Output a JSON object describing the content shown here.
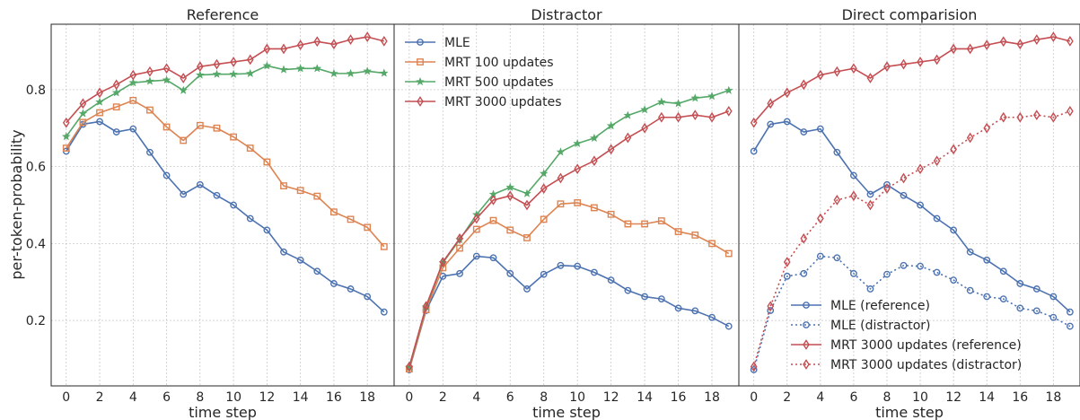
{
  "figure": {
    "ylabel": "per-token-probability",
    "ylim": [
      0.03,
      0.97
    ],
    "yticks": [
      0.2,
      0.4,
      0.6,
      0.8
    ],
    "xlim": [
      -0.9,
      19.6
    ],
    "xticks": [
      0,
      2,
      4,
      6,
      8,
      10,
      12,
      14,
      16,
      18
    ],
    "xlabel": "time step"
  },
  "colors": {
    "mle": "#4c72b0",
    "mrt100": "#dd8452",
    "mrt500": "#55a868",
    "mrt3000": "#c44e52"
  },
  "chart_data": [
    {
      "type": "line",
      "title": "Reference",
      "xlabel": "time step",
      "ylabel": "per-token-probability",
      "grid": true,
      "x": [
        0,
        1,
        2,
        3,
        4,
        5,
        6,
        7,
        8,
        9,
        10,
        11,
        12,
        13,
        14,
        15,
        16,
        17,
        18,
        19
      ],
      "series": [
        {
          "key": "mle",
          "color": "#4c72b0",
          "marker": "circle",
          "dash": "solid",
          "values": [
            0.64,
            0.71,
            0.717,
            0.69,
            0.698,
            0.637,
            0.577,
            0.528,
            0.553,
            0.525,
            0.5,
            0.465,
            0.435,
            0.378,
            0.357,
            0.328,
            0.296,
            0.282,
            0.262,
            0.222
          ]
        },
        {
          "key": "mrt100",
          "color": "#dd8452",
          "marker": "square",
          "dash": "solid",
          "values": [
            0.648,
            0.715,
            0.74,
            0.755,
            0.772,
            0.747,
            0.703,
            0.668,
            0.707,
            0.7,
            0.677,
            0.648,
            0.612,
            0.55,
            0.538,
            0.523,
            0.482,
            0.463,
            0.442,
            0.392
          ]
        },
        {
          "key": "mrt500",
          "color": "#55a868",
          "marker": "star",
          "dash": "solid",
          "values": [
            0.678,
            0.738,
            0.768,
            0.792,
            0.818,
            0.822,
            0.825,
            0.798,
            0.838,
            0.84,
            0.84,
            0.842,
            0.862,
            0.852,
            0.855,
            0.855,
            0.842,
            0.842,
            0.848,
            0.843
          ]
        },
        {
          "key": "mrt3000",
          "color": "#c44e52",
          "marker": "diamond",
          "dash": "solid",
          "values": [
            0.714,
            0.764,
            0.792,
            0.813,
            0.838,
            0.847,
            0.855,
            0.83,
            0.86,
            0.866,
            0.872,
            0.878,
            0.906,
            0.906,
            0.916,
            0.925,
            0.918,
            0.93,
            0.937,
            0.926
          ]
        }
      ]
    },
    {
      "type": "line",
      "title": "Distractor",
      "xlabel": "time step",
      "grid": true,
      "legend": {
        "position": "top-left",
        "entries": [
          {
            "key": "mle",
            "label": "MLE"
          },
          {
            "key": "mrt100",
            "label": "MRT 100 updates"
          },
          {
            "key": "mrt500",
            "label": "MRT 500 updates"
          },
          {
            "key": "mrt3000",
            "label": "MRT 3000 updates"
          }
        ]
      },
      "x": [
        0,
        1,
        2,
        3,
        4,
        5,
        6,
        7,
        8,
        9,
        10,
        11,
        12,
        13,
        14,
        15,
        16,
        17,
        18,
        19
      ],
      "series": [
        {
          "key": "mle",
          "color": "#4c72b0",
          "marker": "circle",
          "dash": "solid",
          "values": [
            0.072,
            0.226,
            0.315,
            0.322,
            0.367,
            0.363,
            0.322,
            0.282,
            0.32,
            0.343,
            0.341,
            0.325,
            0.305,
            0.278,
            0.262,
            0.256,
            0.232,
            0.225,
            0.208,
            0.185
          ]
        },
        {
          "key": "mrt100",
          "color": "#dd8452",
          "marker": "square",
          "dash": "solid",
          "values": [
            0.074,
            0.228,
            0.337,
            0.388,
            0.437,
            0.46,
            0.435,
            0.415,
            0.463,
            0.503,
            0.506,
            0.493,
            0.476,
            0.451,
            0.451,
            0.459,
            0.431,
            0.422,
            0.4,
            0.374
          ]
        },
        {
          "key": "mrt500",
          "color": "#55a868",
          "marker": "star",
          "dash": "solid",
          "values": [
            0.078,
            0.235,
            0.35,
            0.41,
            0.475,
            0.528,
            0.546,
            0.53,
            0.582,
            0.638,
            0.66,
            0.674,
            0.706,
            0.733,
            0.748,
            0.768,
            0.764,
            0.778,
            0.783,
            0.798
          ]
        },
        {
          "key": "mrt3000",
          "color": "#c44e52",
          "marker": "diamond",
          "dash": "solid",
          "values": [
            0.08,
            0.237,
            0.352,
            0.413,
            0.465,
            0.513,
            0.524,
            0.5,
            0.543,
            0.57,
            0.594,
            0.615,
            0.645,
            0.675,
            0.7,
            0.728,
            0.728,
            0.734,
            0.728,
            0.744
          ]
        }
      ]
    },
    {
      "type": "line",
      "title": "Direct comparision",
      "xlabel": "time step",
      "grid": true,
      "legend": {
        "position": "bottom-right",
        "entries": [
          {
            "key": "mle_ref",
            "label": "MLE (reference)"
          },
          {
            "key": "mle_dis",
            "label": "MLE (distractor)"
          },
          {
            "key": "mrt_ref",
            "label": "MRT 3000 updates (reference)"
          },
          {
            "key": "mrt_dis",
            "label": "MRT 3000 updates (distractor)"
          }
        ]
      },
      "x": [
        0,
        1,
        2,
        3,
        4,
        5,
        6,
        7,
        8,
        9,
        10,
        11,
        12,
        13,
        14,
        15,
        16,
        17,
        18,
        19
      ],
      "series": [
        {
          "key": "mle_ref",
          "color": "#4c72b0",
          "marker": "circle",
          "dash": "solid",
          "values": [
            0.64,
            0.71,
            0.717,
            0.69,
            0.698,
            0.637,
            0.577,
            0.528,
            0.553,
            0.525,
            0.5,
            0.465,
            0.435,
            0.378,
            0.357,
            0.328,
            0.296,
            0.282,
            0.262,
            0.222
          ]
        },
        {
          "key": "mle_dis",
          "color": "#4c72b0",
          "marker": "circle",
          "dash": "dotted",
          "values": [
            0.072,
            0.226,
            0.315,
            0.322,
            0.367,
            0.363,
            0.322,
            0.282,
            0.32,
            0.343,
            0.341,
            0.325,
            0.305,
            0.278,
            0.262,
            0.256,
            0.232,
            0.225,
            0.208,
            0.185
          ]
        },
        {
          "key": "mrt_ref",
          "color": "#c44e52",
          "marker": "diamond",
          "dash": "solid",
          "values": [
            0.714,
            0.764,
            0.792,
            0.813,
            0.838,
            0.847,
            0.855,
            0.83,
            0.86,
            0.866,
            0.872,
            0.878,
            0.906,
            0.906,
            0.916,
            0.925,
            0.918,
            0.93,
            0.937,
            0.926
          ]
        },
        {
          "key": "mrt_dis",
          "color": "#c44e52",
          "marker": "diamond",
          "dash": "dotted",
          "values": [
            0.08,
            0.237,
            0.352,
            0.413,
            0.465,
            0.513,
            0.524,
            0.5,
            0.543,
            0.57,
            0.594,
            0.615,
            0.645,
            0.675,
            0.7,
            0.728,
            0.728,
            0.734,
            0.728,
            0.744
          ]
        }
      ]
    }
  ]
}
